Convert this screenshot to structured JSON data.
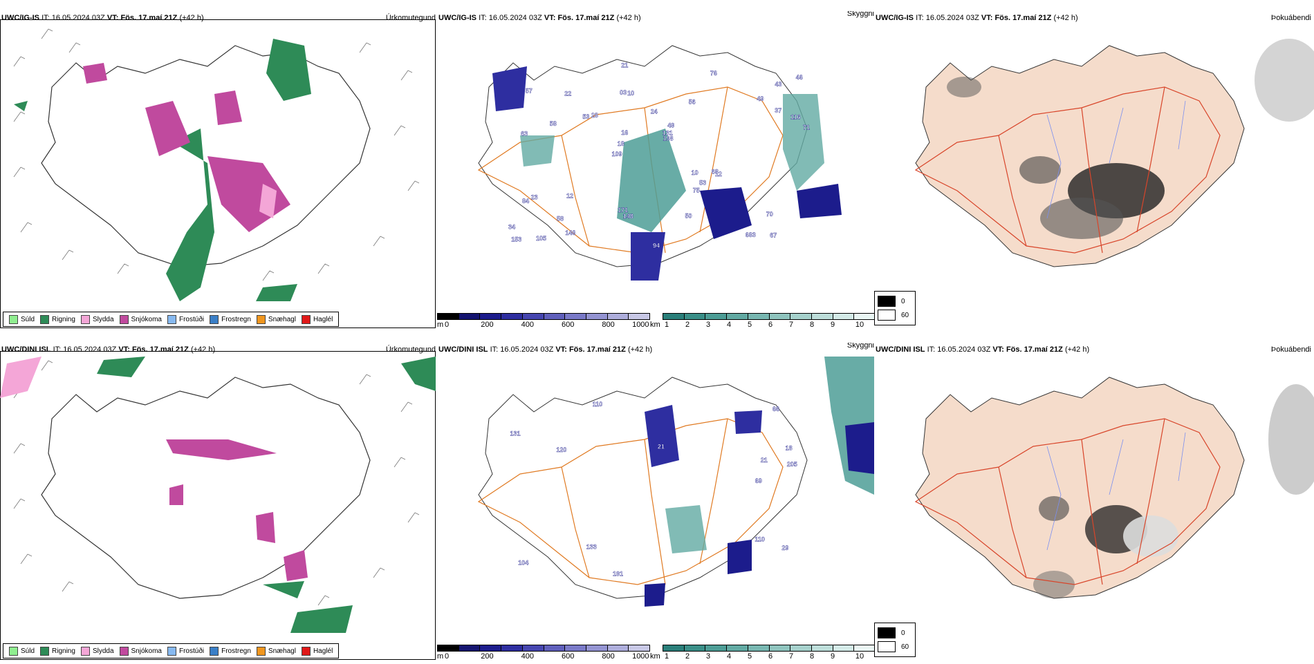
{
  "rows": [
    {
      "model": "UWC/IG-IS",
      "it_label": "IT:",
      "it_value": "16.05.2024 03Z",
      "vt_label": "VT:",
      "vt_value": "Fös. 17.maí 21Z",
      "lead": "(+42 h)",
      "cloud_labels": [
        "67",
        "63",
        "43",
        "109",
        "56",
        "105",
        "03",
        "24",
        "23",
        "28",
        "34",
        "58",
        "10",
        "49",
        "12",
        "57",
        "21",
        "71",
        "10",
        "37",
        "18",
        "171",
        "16",
        "22",
        "76",
        "12",
        "683",
        "70",
        "68",
        "94",
        "53",
        "58",
        "75",
        "146",
        "116",
        "131",
        "153",
        "148",
        "198",
        "84",
        "49",
        "46",
        "53",
        "50"
      ]
    },
    {
      "model": "UWC/DINI ISL",
      "it_label": "IT:",
      "it_value": "16.05.2024 03Z",
      "vt_label": "VT:",
      "vt_value": "Fös. 17.maí 21Z",
      "lead": "(+42 h)",
      "cloud_labels": [
        "110",
        "18",
        "29",
        "21",
        "104",
        "110",
        "21",
        "133",
        "66",
        "120",
        "205",
        "131",
        "69",
        "191"
      ]
    }
  ],
  "panel_labels": {
    "precip": "Úrkomutegund",
    "cloud": "Skyggni",
    "fog": "Þokuábendi"
  },
  "precip_legend": [
    {
      "label": "Súld",
      "color": "#90ee90"
    },
    {
      "label": "Rigning",
      "color": "#2e8b57"
    },
    {
      "label": "Slydda",
      "color": "#f4a6d7"
    },
    {
      "label": "Snjókoma",
      "color": "#c04a9e"
    },
    {
      "label": "Frostúði",
      "color": "#87b9f0"
    },
    {
      "label": "Frostregn",
      "color": "#3a7fc7"
    },
    {
      "label": "Snæhagl",
      "color": "#f0961e"
    },
    {
      "label": "Haglél",
      "color": "#e01818"
    }
  ],
  "cloud_base_scale": {
    "unit": "m",
    "ticks": [
      "0",
      "200",
      "400",
      "600",
      "800",
      "1000"
    ],
    "colors": [
      "#000000",
      "#141470",
      "#1c1c8c",
      "#2e2ea0",
      "#4646b0",
      "#6060bc",
      "#7a7ac8",
      "#9494d2",
      "#aeaedc",
      "#c8c8e6"
    ]
  },
  "visibility_scale": {
    "unit": "km",
    "ticks": [
      "1",
      "2",
      "3",
      "4",
      "5",
      "6",
      "7",
      "8",
      "9",
      "10"
    ],
    "colors": [
      "#2a7f7a",
      "#3a8f88",
      "#4d9d96",
      "#62aaa3",
      "#78b7b1",
      "#8fc4be",
      "#a6d1cc",
      "#bddeda",
      "#d4ebe8",
      "#eaf6f4"
    ]
  },
  "fog_legend": [
    {
      "label": "0",
      "color": "#000000"
    },
    {
      "label": "60",
      "color": "#ffffff"
    }
  ],
  "colors": {
    "map_outline": "#333333",
    "roads": "#e07a22",
    "fog_land": "#f5dccb",
    "fog_roads": "#d8452a",
    "rivers": "#7b8ff0"
  }
}
